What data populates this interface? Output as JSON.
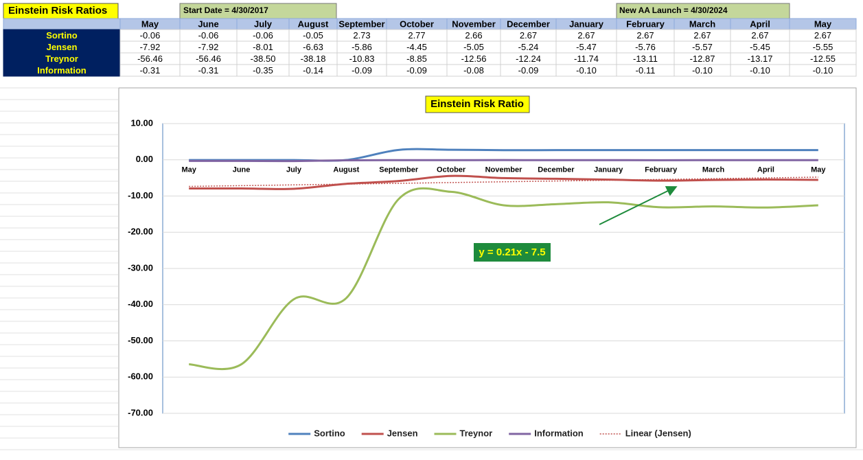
{
  "labels": {
    "title": "Einstein Risk Ratios",
    "start": "Start Date = 4/30/2017",
    "launch": "New AA Launch = 4/30/2024"
  },
  "table": {
    "header": [
      "May",
      "June",
      "July",
      "August",
      "September",
      "October",
      "November",
      "December",
      "January",
      "February",
      "March",
      "April",
      "May"
    ],
    "rows": [
      [
        "Sortino",
        "-0.06",
        "-0.06",
        "-0.06",
        "-0.05",
        "2.73",
        "2.77",
        "2.66",
        "2.67",
        "2.67",
        "2.67",
        "2.67",
        "2.67",
        "2.67"
      ],
      [
        "Jensen",
        "-7.92",
        "-7.92",
        "-8.01",
        "-6.63",
        "-5.86",
        "-4.45",
        "-5.05",
        "-5.24",
        "-5.47",
        "-5.76",
        "-5.57",
        "-5.45",
        "-5.55"
      ],
      [
        "Treynor",
        "-56.46",
        "-56.46",
        "-38.50",
        "-38.18",
        "-10.83",
        "-8.85",
        "-12.56",
        "-12.24",
        "-11.74",
        "-13.11",
        "-12.87",
        "-13.17",
        "-12.55"
      ],
      [
        "Information",
        "-0.31",
        "-0.31",
        "-0.35",
        "-0.14",
        "-0.09",
        "-0.09",
        "-0.08",
        "-0.09",
        "-0.10",
        "-0.11",
        "-0.10",
        "-0.10",
        "-0.10"
      ]
    ]
  },
  "chart_data": {
    "type": "line",
    "title": "Einstein Risk Ratio",
    "categories": [
      "May",
      "June",
      "July",
      "August",
      "September",
      "October",
      "November",
      "December",
      "January",
      "February",
      "March",
      "April",
      "May"
    ],
    "series": [
      {
        "name": "Sortino",
        "color": "#4f81bd",
        "values": [
          -0.06,
          -0.06,
          -0.06,
          -0.05,
          2.73,
          2.77,
          2.66,
          2.67,
          2.67,
          2.67,
          2.67,
          2.67,
          2.67
        ]
      },
      {
        "name": "Jensen",
        "color": "#c0504d",
        "values": [
          -7.92,
          -7.92,
          -8.01,
          -6.63,
          -5.86,
          -4.45,
          -5.05,
          -5.24,
          -5.47,
          -5.76,
          -5.57,
          -5.45,
          -5.55
        ]
      },
      {
        "name": "Treynor",
        "color": "#9bbb59",
        "values": [
          -56.46,
          -56.46,
          -38.5,
          -38.18,
          -10.83,
          -8.85,
          -12.56,
          -12.24,
          -11.74,
          -13.11,
          -12.87,
          -13.17,
          -12.55
        ]
      },
      {
        "name": "Information",
        "color": "#8064a2",
        "values": [
          -0.31,
          -0.31,
          -0.35,
          -0.14,
          -0.09,
          -0.09,
          -0.08,
          -0.09,
          -0.1,
          -0.11,
          -0.1,
          -0.1,
          -0.1
        ]
      }
    ],
    "trendline": {
      "name": "Linear (Jensen)",
      "of": "Jensen",
      "color": "#c0504d"
    },
    "annotation": "y = 0.21x - 7.5",
    "ylim": [
      -70,
      10
    ],
    "yticks": [
      {
        "value": 10,
        "label": "10.00"
      },
      {
        "value": 0,
        "label": "0.00"
      },
      {
        "value": -10,
        "label": "-10.00"
      },
      {
        "value": -20,
        "label": "-20.00"
      },
      {
        "value": -30,
        "label": "-30.00"
      },
      {
        "value": -40,
        "label": "-40.00"
      },
      {
        "value": -50,
        "label": "-50.00"
      },
      {
        "value": -60,
        "label": "-60.00"
      },
      {
        "value": -70,
        "label": "-70.00"
      }
    ],
    "grid": true,
    "legend": "bottom",
    "smooth": true
  }
}
